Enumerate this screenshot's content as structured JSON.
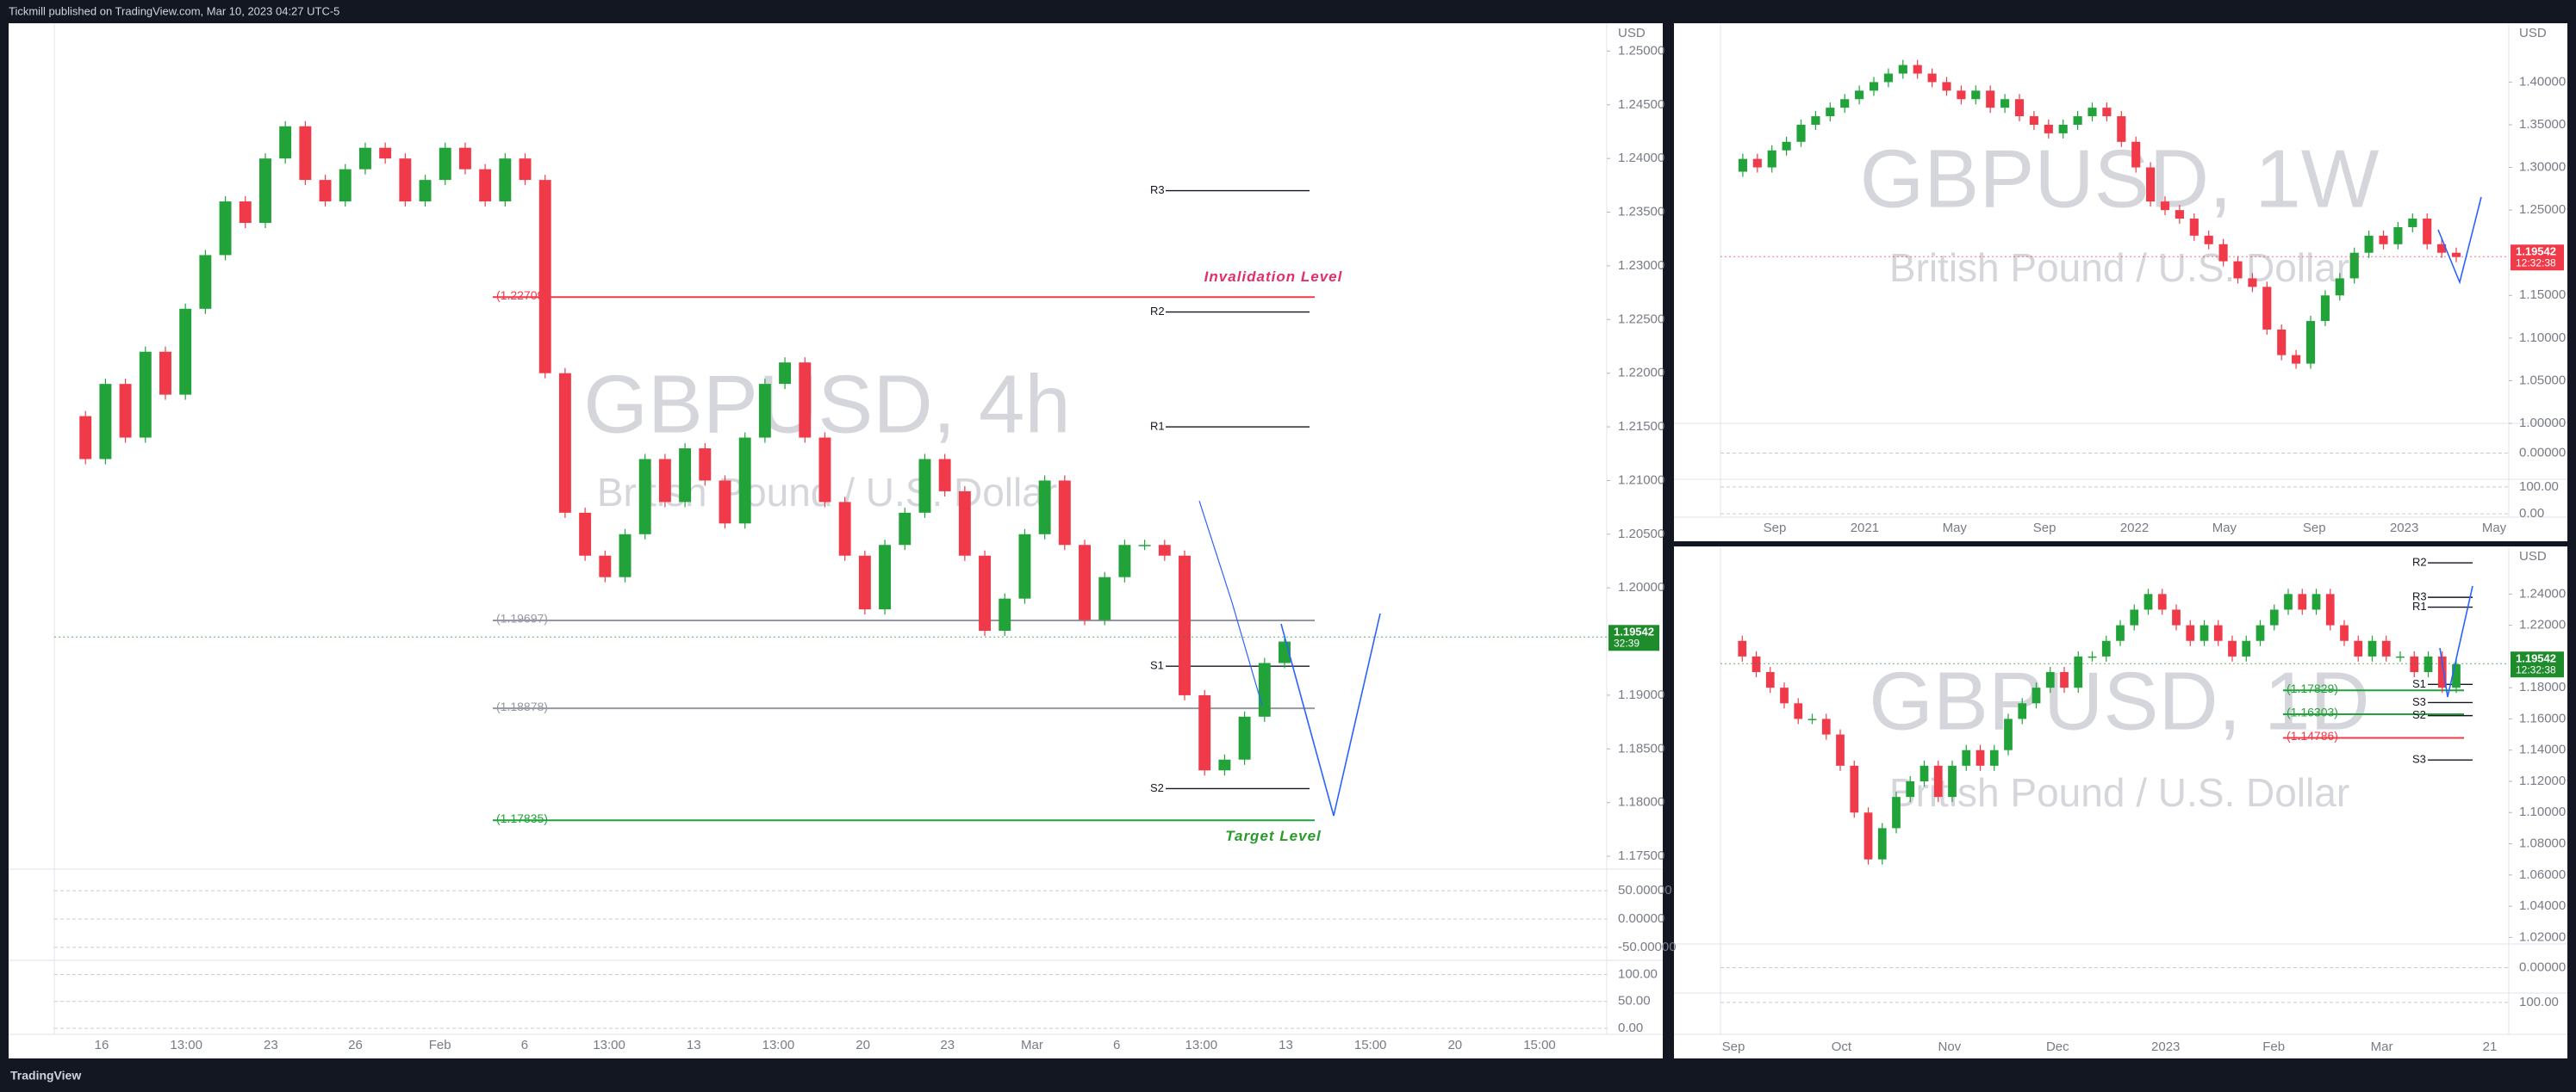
{
  "header": {
    "text": "Tickmill published on TradingView.com, Mar 10, 2023 04:27 UTC-5"
  },
  "footer": {
    "brand": "TradingView"
  },
  "chart_data": [
    {
      "type": "candlestick",
      "title": "GBPUSD, 4h",
      "subtitle": "British Pound / U.S. Dollar",
      "currency": "USD",
      "colors": {
        "up": "#22a33a",
        "down": "#f03a4a"
      },
      "ylim": [
        1.1738,
        1.2526
      ],
      "yticks": [
        {
          "value": 1.25,
          "label": "1.25000"
        },
        {
          "value": 1.245,
          "label": "1.24500"
        },
        {
          "value": 1.24,
          "label": "1.24000"
        },
        {
          "value": 1.235,
          "label": "1.23500"
        },
        {
          "value": 1.23,
          "label": "1.23000"
        },
        {
          "value": 1.225,
          "label": "1.22500"
        },
        {
          "value": 1.22,
          "label": "1.22000"
        },
        {
          "value": 1.215,
          "label": "1.21500"
        },
        {
          "value": 1.21,
          "label": "1.21000"
        },
        {
          "value": 1.205,
          "label": "1.20500"
        },
        {
          "value": 1.2,
          "label": "1.20000"
        },
        {
          "value": 1.19,
          "label": "1.19000"
        },
        {
          "value": 1.185,
          "label": "1.18500"
        },
        {
          "value": 1.18,
          "label": "1.18000"
        },
        {
          "value": 1.175,
          "label": "1.17500"
        }
      ],
      "xticks": [
        "16",
        "13:00",
        "23",
        "26",
        "Feb",
        "6",
        "13:00",
        "13",
        "13:00",
        "20",
        "23",
        "Mar",
        "6",
        "13:00",
        "13",
        "15:00",
        "20",
        "15:00"
      ],
      "values": [
        1.216,
        1.212,
        1.219,
        1.214,
        1.222,
        1.218,
        1.226,
        1.231,
        1.236,
        1.234,
        1.24,
        1.243,
        1.238,
        1.236,
        1.239,
        1.241,
        1.24,
        1.236,
        1.238,
        1.241,
        1.239,
        1.236,
        1.24,
        1.238,
        1.22,
        1.207,
        1.203,
        1.201,
        1.205,
        1.212,
        1.208,
        1.213,
        1.21,
        1.206,
        1.214,
        1.219,
        1.221,
        1.214,
        1.208,
        1.203,
        1.198,
        1.204,
        1.207,
        1.212,
        1.209,
        1.203,
        1.196,
        1.199,
        1.205,
        1.21,
        1.204,
        1.197,
        1.201,
        1.204,
        1.204,
        1.203,
        1.19,
        1.183,
        1.184,
        1.188,
        1.193,
        1.195
      ],
      "last_price": {
        "value": 1.19542,
        "label": "1.19542",
        "timer": "32:39",
        "color": "#1e8c2b"
      },
      "levels": [
        {
          "value": 1.22709,
          "label": "(1.22709)",
          "color": "#f03a4a"
        },
        {
          "value": 1.19697,
          "label": "(1.19697)",
          "color": "#9598a1"
        },
        {
          "value": 1.18878,
          "label": "(1.18878)",
          "color": "#9598a1"
        },
        {
          "value": 1.17835,
          "label": "(1.17835)",
          "color": "#22a33a"
        }
      ],
      "pivots": [
        {
          "value": 1.237,
          "label": "R3"
        },
        {
          "value": 1.2257,
          "label": "R2"
        },
        {
          "value": 1.215,
          "label": "R1"
        },
        {
          "value": 1.1927,
          "label": "S1"
        },
        {
          "value": 1.1813,
          "label": "S2"
        }
      ],
      "annotations": [
        {
          "text": "Invalidation Level",
          "value": 1.2289,
          "color": "#e0306a"
        },
        {
          "text": "Target  Level",
          "value": 1.1768,
          "color": "#2a9a2a"
        }
      ],
      "osc_ylim": [
        -73,
        73
      ],
      "osc_ticks": [
        {
          "value": 50,
          "label": "50.00000"
        },
        {
          "value": 0,
          "label": "0.00000"
        },
        {
          "value": -50,
          "label": "-50.00000"
        }
      ],
      "stoch_ylim": [
        0,
        112
      ],
      "stoch_ticks": [
        {
          "value": 100,
          "label": "100.00"
        },
        {
          "value": 50,
          "label": "50.00"
        },
        {
          "value": 0,
          "label": "0.00"
        }
      ]
    },
    {
      "type": "candlestick",
      "title": "GBPUSD, 1W",
      "subtitle": "British Pound / U.S. Dollar",
      "currency": "USD",
      "colors": {
        "up": "#22a33a",
        "down": "#f03a4a"
      },
      "ylim": [
        1.0,
        1.469
      ],
      "yticks": [
        {
          "value": 1.4,
          "label": "1.40000"
        },
        {
          "value": 1.35,
          "label": "1.35000"
        },
        {
          "value": 1.3,
          "label": "1.30000"
        },
        {
          "value": 1.25,
          "label": "1.25000"
        },
        {
          "value": 1.15,
          "label": "1.15000"
        },
        {
          "value": 1.1,
          "label": "1.10000"
        },
        {
          "value": 1.05,
          "label": "1.05000"
        },
        {
          "value": 1.0,
          "label": "1.00000"
        }
      ],
      "xticks": [
        "Sep",
        "2021",
        "May",
        "Sep",
        "2022",
        "May",
        "Sep",
        "2023",
        "May"
      ],
      "values": [
        1.295,
        1.31,
        1.3,
        1.32,
        1.33,
        1.35,
        1.36,
        1.37,
        1.38,
        1.39,
        1.4,
        1.41,
        1.42,
        1.41,
        1.4,
        1.39,
        1.38,
        1.39,
        1.37,
        1.38,
        1.36,
        1.35,
        1.34,
        1.35,
        1.36,
        1.37,
        1.36,
        1.33,
        1.3,
        1.26,
        1.25,
        1.24,
        1.22,
        1.21,
        1.19,
        1.17,
        1.16,
        1.11,
        1.08,
        1.07,
        1.12,
        1.15,
        1.17,
        1.2,
        1.22,
        1.21,
        1.23,
        1.24,
        1.21,
        1.2,
        1.195
      ],
      "last_price": {
        "value": 1.19542,
        "label": "1.19542",
        "timer": "12:32:38",
        "color": "#f03a4a"
      },
      "levels": [],
      "pivots": [],
      "annotations": [],
      "osc_ylim": [
        -1,
        1
      ],
      "osc_ticks": [
        {
          "value": 0,
          "label": "0.00000"
        }
      ],
      "stoch_ylim": [
        -19,
        122
      ],
      "stoch_ticks": [
        {
          "value": 100,
          "label": "100.00"
        },
        {
          "value": 0,
          "label": "0.00"
        }
      ]
    },
    {
      "type": "candlestick",
      "title": "GBPUSD, 1D",
      "subtitle": "British Pound / U.S. Dollar",
      "currency": "USD",
      "colors": {
        "up": "#22a33a",
        "down": "#f03a4a"
      },
      "ylim": [
        1.0158,
        1.2705
      ],
      "yticks": [
        {
          "value": 1.24,
          "label": "1.24000"
        },
        {
          "value": 1.22,
          "label": "1.22000"
        },
        {
          "value": 1.18,
          "label": "1.18000"
        },
        {
          "value": 1.16,
          "label": "1.16000"
        },
        {
          "value": 1.14,
          "label": "1.14000"
        },
        {
          "value": 1.12,
          "label": "1.12000"
        },
        {
          "value": 1.1,
          "label": "1.10000"
        },
        {
          "value": 1.08,
          "label": "1.08000"
        },
        {
          "value": 1.06,
          "label": "1.06000"
        },
        {
          "value": 1.04,
          "label": "1.04000"
        },
        {
          "value": 1.02,
          "label": "1.02000"
        }
      ],
      "xticks": [
        "Sep",
        "Oct",
        "Nov",
        "Dec",
        "2023",
        "Feb",
        "Mar",
        "21"
      ],
      "values": [
        1.21,
        1.2,
        1.19,
        1.18,
        1.17,
        1.16,
        1.16,
        1.15,
        1.13,
        1.1,
        1.07,
        1.09,
        1.11,
        1.12,
        1.13,
        1.11,
        1.13,
        1.14,
        1.13,
        1.14,
        1.16,
        1.17,
        1.18,
        1.19,
        1.18,
        1.2,
        1.2,
        1.21,
        1.22,
        1.23,
        1.24,
        1.23,
        1.22,
        1.21,
        1.22,
        1.21,
        1.2,
        1.21,
        1.22,
        1.23,
        1.24,
        1.23,
        1.24,
        1.22,
        1.21,
        1.2,
        1.21,
        1.2,
        1.2,
        1.19,
        1.2,
        1.18,
        1.195
      ],
      "last_price": {
        "value": 1.19542,
        "label": "1.19542",
        "timer": "12:32:38",
        "color": "#1e8c2b"
      },
      "levels": [
        {
          "value": 1.17829,
          "label": "(1.17829)",
          "color": "#22a33a"
        },
        {
          "value": 1.16303,
          "label": "(1.16303)",
          "color": "#22a33a"
        },
        {
          "value": 1.14786,
          "label": "(1.14786)",
          "color": "#f03a4a"
        }
      ],
      "pivots": [
        {
          "value": 1.26,
          "label": "R2"
        },
        {
          "value": 1.2379,
          "label": "R3"
        },
        {
          "value": 1.2316,
          "label": "R1"
        },
        {
          "value": 1.1821,
          "label": "S1"
        },
        {
          "value": 1.1705,
          "label": "S3"
        },
        {
          "value": 1.1621,
          "label": "S2"
        },
        {
          "value": 1.1337,
          "label": "S3"
        }
      ],
      "annotations": [],
      "osc_ylim": [
        -1.2,
        1
      ],
      "osc_ticks": [
        {
          "value": 0,
          "label": "0.00000"
        }
      ],
      "stoch_ylim": [
        0,
        130
      ],
      "stoch_ticks": [
        {
          "value": 100,
          "label": "100.00"
        }
      ]
    }
  ]
}
